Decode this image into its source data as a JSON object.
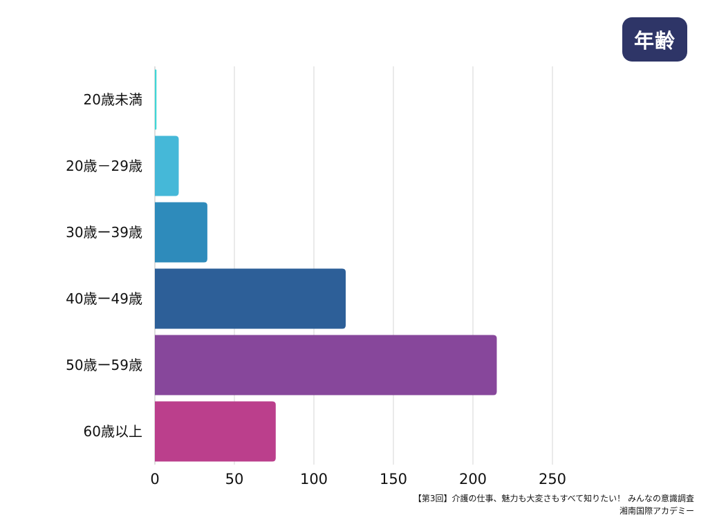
{
  "badge": {
    "label": "年齢"
  },
  "source": {
    "line1": "【第3回】介護の仕事、魅力も大変さもすべて知りたい！ みんなの意識調査",
    "line2": "湘南国際アカデミー"
  },
  "chart_data": {
    "type": "bar",
    "orientation": "horizontal",
    "categories": [
      "20歳未満",
      "20歳－29歳",
      "30歳ー39歳",
      "40歳ー49歳",
      "50歳ー59歳",
      "60歳以上"
    ],
    "values": [
      1,
      15,
      33,
      120,
      215,
      76
    ],
    "colors": [
      "#3fd6d6",
      "#45b8d8",
      "#2e8bbb",
      "#2d5f98",
      "#87479b",
      "#bb3f8c"
    ],
    "xlim": [
      0,
      250
    ],
    "xticks": [
      0,
      50,
      100,
      150,
      200,
      250
    ],
    "grid": true,
    "title": "",
    "xlabel": "",
    "ylabel": ""
  }
}
